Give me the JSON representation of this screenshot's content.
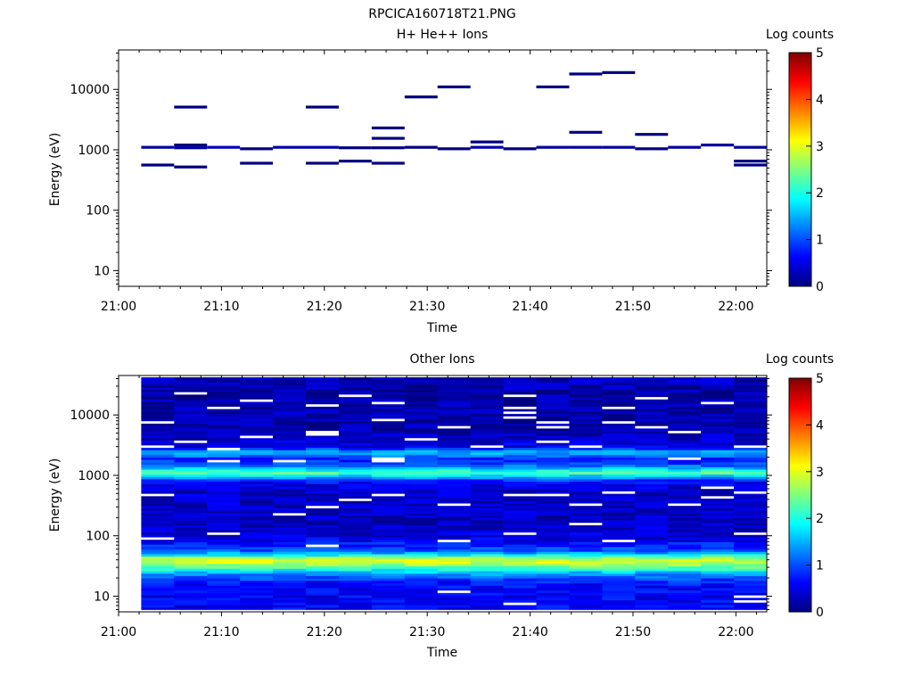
{
  "page": {
    "title": "RPCICA160718T21.PNG"
  },
  "colorbar": {
    "stops": [
      "#00007f",
      "#0000ff",
      "#007fff",
      "#00ffff",
      "#7fff7f",
      "#ffff00",
      "#ff7f00",
      "#ff0000",
      "#7f0000"
    ]
  },
  "chart_data": [
    {
      "type": "heatmap",
      "title": "H+ He++ Ions",
      "xlabel": "Time",
      "ylabel": "Energy (eV)",
      "xticks": [
        "21:00",
        "21:10",
        "21:20",
        "21:30",
        "21:40",
        "21:50",
        "22:00"
      ],
      "xlim_minutes": [
        0,
        63
      ],
      "yscale": "log",
      "ylim": [
        5.5,
        45000
      ],
      "yticks": [
        "10",
        "100",
        "1000",
        "10000"
      ],
      "colorbar": {
        "label": "Log counts",
        "range": [
          0,
          5
        ],
        "ticks": [
          "0",
          "1",
          "2",
          "3",
          "4",
          "5"
        ]
      },
      "bins": [
        {
          "t0": 2.2,
          "t1": 5.4,
          "e": 1100,
          "v": 0.15
        },
        {
          "t0": 2.2,
          "t1": 5.4,
          "e": 560,
          "v": 0.0
        },
        {
          "t0": 5.4,
          "t1": 8.6,
          "e": 5100,
          "v": 0.0
        },
        {
          "t0": 5.4,
          "t1": 8.6,
          "e": 1200,
          "v": 0.0
        },
        {
          "t0": 5.4,
          "t1": 8.6,
          "e": 1080,
          "v": 0.15
        },
        {
          "t0": 5.4,
          "t1": 8.6,
          "e": 520,
          "v": 0.0
        },
        {
          "t0": 8.6,
          "t1": 11.8,
          "e": 1100,
          "v": 0.3
        },
        {
          "t0": 11.8,
          "t1": 15.0,
          "e": 1040,
          "v": 0.0
        },
        {
          "t0": 11.8,
          "t1": 15.0,
          "e": 600,
          "v": 0.0
        },
        {
          "t0": 15.0,
          "t1": 18.2,
          "e": 1100,
          "v": 0.2
        },
        {
          "t0": 18.2,
          "t1": 21.4,
          "e": 5100,
          "v": 0.0
        },
        {
          "t0": 18.2,
          "t1": 21.4,
          "e": 1100,
          "v": 0.2
        },
        {
          "t0": 18.2,
          "t1": 21.4,
          "e": 600,
          "v": 0.0
        },
        {
          "t0": 21.4,
          "t1": 24.6,
          "e": 1080,
          "v": 0.0
        },
        {
          "t0": 21.4,
          "t1": 24.6,
          "e": 650,
          "v": 0.0
        },
        {
          "t0": 24.6,
          "t1": 27.8,
          "e": 2300,
          "v": 0.0
        },
        {
          "t0": 24.6,
          "t1": 27.8,
          "e": 1550,
          "v": 0.0
        },
        {
          "t0": 24.6,
          "t1": 27.8,
          "e": 1080,
          "v": 0.0
        },
        {
          "t0": 24.6,
          "t1": 27.8,
          "e": 600,
          "v": 0.0
        },
        {
          "t0": 27.8,
          "t1": 31.0,
          "e": 7500,
          "v": 0.0
        },
        {
          "t0": 27.8,
          "t1": 31.0,
          "e": 1100,
          "v": 0.0
        },
        {
          "t0": 31.0,
          "t1": 34.2,
          "e": 11000,
          "v": 0.0
        },
        {
          "t0": 31.0,
          "t1": 34.2,
          "e": 1040,
          "v": 0.0
        },
        {
          "t0": 34.2,
          "t1": 37.4,
          "e": 1350,
          "v": 0.0
        },
        {
          "t0": 34.2,
          "t1": 37.4,
          "e": 1100,
          "v": 0.2
        },
        {
          "t0": 37.4,
          "t1": 40.6,
          "e": 1040,
          "v": 0.0
        },
        {
          "t0": 40.6,
          "t1": 43.8,
          "e": 11000,
          "v": 0.0
        },
        {
          "t0": 40.6,
          "t1": 43.8,
          "e": 1100,
          "v": 0.15
        },
        {
          "t0": 43.8,
          "t1": 47.0,
          "e": 18000,
          "v": 0.0
        },
        {
          "t0": 43.8,
          "t1": 47.0,
          "e": 1950,
          "v": 0.0
        },
        {
          "t0": 43.8,
          "t1": 47.0,
          "e": 1100,
          "v": 0.15
        },
        {
          "t0": 47.0,
          "t1": 50.2,
          "e": 19000,
          "v": 0.0
        },
        {
          "t0": 47.0,
          "t1": 50.2,
          "e": 1100,
          "v": 0.15
        },
        {
          "t0": 50.2,
          "t1": 53.4,
          "e": 1800,
          "v": 0.0
        },
        {
          "t0": 50.2,
          "t1": 53.4,
          "e": 1040,
          "v": 0.0
        },
        {
          "t0": 53.4,
          "t1": 56.6,
          "e": 1100,
          "v": 0.15
        },
        {
          "t0": 56.6,
          "t1": 59.8,
          "e": 1200,
          "v": 0.15
        },
        {
          "t0": 59.8,
          "t1": 63.0,
          "e": 1100,
          "v": 0.15
        },
        {
          "t0": 59.8,
          "t1": 63.0,
          "e": 650,
          "v": 0.0
        },
        {
          "t0": 59.8,
          "t1": 63.0,
          "e": 560,
          "v": 0.0
        }
      ]
    },
    {
      "type": "heatmap",
      "title": "Other Ions",
      "xlabel": "Time",
      "ylabel": "Energy (eV)",
      "xticks": [
        "21:00",
        "21:10",
        "21:20",
        "21:30",
        "21:40",
        "21:50",
        "22:00"
      ],
      "xlim_minutes": [
        0,
        63
      ],
      "yscale": "log",
      "ylim": [
        5.5,
        45000
      ],
      "yticks": [
        "10",
        "100",
        "1000",
        "10000"
      ],
      "colorbar": {
        "label": "Log counts",
        "range": [
          0,
          5
        ],
        "ticks": [
          "0",
          "1",
          "2",
          "3",
          "4",
          "5"
        ]
      },
      "time_bins": [
        2.2,
        5.4,
        8.6,
        11.8,
        15.0,
        18.2,
        21.4,
        24.6,
        27.8,
        31.0,
        34.2,
        37.4,
        40.6,
        43.8,
        47.0,
        50.2,
        53.4,
        56.6,
        59.8,
        63.0
      ],
      "energy_profile": [
        {
          "e": 7,
          "v": 0.6
        },
        {
          "e": 10,
          "v": 0.6
        },
        {
          "e": 13,
          "v": 0.6
        },
        {
          "e": 17,
          "v": 0.7
        },
        {
          "e": 22,
          "v": 1.2
        },
        {
          "e": 28,
          "v": 2.0
        },
        {
          "e": 33,
          "v": 2.6
        },
        {
          "e": 38,
          "v": 3.0
        },
        {
          "e": 43,
          "v": 2.7
        },
        {
          "e": 50,
          "v": 1.6
        },
        {
          "e": 58,
          "v": 1.0
        },
        {
          "e": 70,
          "v": 0.8
        },
        {
          "e": 90,
          "v": 0.5
        },
        {
          "e": 120,
          "v": 0.4
        },
        {
          "e": 170,
          "v": 0.3
        },
        {
          "e": 250,
          "v": 0.35
        },
        {
          "e": 400,
          "v": 0.35
        },
        {
          "e": 600,
          "v": 0.4
        },
        {
          "e": 800,
          "v": 0.7
        },
        {
          "e": 950,
          "v": 1.5
        },
        {
          "e": 1100,
          "v": 2.3
        },
        {
          "e": 1250,
          "v": 1.8
        },
        {
          "e": 1500,
          "v": 1.0
        },
        {
          "e": 1900,
          "v": 0.8
        },
        {
          "e": 2400,
          "v": 1.6
        },
        {
          "e": 3000,
          "v": 0.5
        },
        {
          "e": 4500,
          "v": 0.3
        },
        {
          "e": 7000,
          "v": 0.2
        },
        {
          "e": 11000,
          "v": 0.2
        },
        {
          "e": 17000,
          "v": 0.2
        },
        {
          "e": 26000,
          "v": 0.2
        },
        {
          "e": 38000,
          "v": 0.3
        }
      ]
    }
  ]
}
